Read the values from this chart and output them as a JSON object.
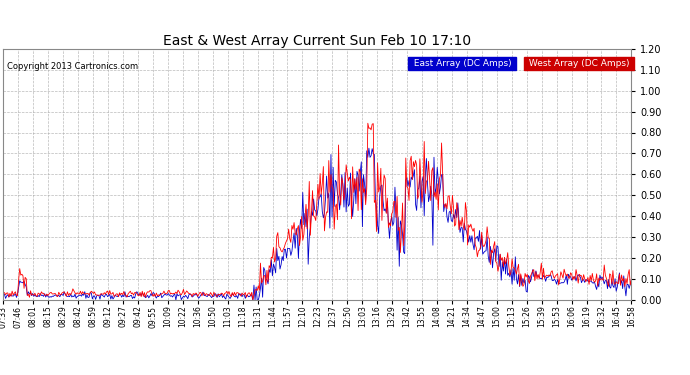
{
  "title": "East & West Array Current Sun Feb 10 17:10",
  "copyright": "Copyright 2013 Cartronics.com",
  "legend_east": "East Array (DC Amps)",
  "legend_west": "West Array (DC Amps)",
  "east_color": "#0000cc",
  "west_color": "#ff0000",
  "east_legend_bg": "#0000cc",
  "west_legend_bg": "#cc0000",
  "ylim": [
    0.0,
    1.2
  ],
  "yticks": [
    0.0,
    0.1,
    0.2,
    0.3,
    0.4,
    0.5,
    0.6,
    0.7,
    0.8,
    0.9,
    1.0,
    1.1,
    1.2
  ],
  "plot_bg": "#ffffff",
  "fig_bg": "#ffffff",
  "grid_color": "#aaaaaa",
  "xtick_labels": [
    "07:33",
    "07:46",
    "08:01",
    "08:15",
    "08:29",
    "08:42",
    "08:59",
    "09:12",
    "09:27",
    "09:42",
    "09:55",
    "10:09",
    "10:22",
    "10:36",
    "10:50",
    "11:03",
    "11:18",
    "11:31",
    "11:44",
    "11:57",
    "12:10",
    "12:23",
    "12:37",
    "12:50",
    "13:03",
    "13:16",
    "13:29",
    "13:42",
    "13:55",
    "14:08",
    "14:21",
    "14:34",
    "14:47",
    "15:00",
    "15:13",
    "15:26",
    "15:39",
    "15:53",
    "16:06",
    "16:19",
    "16:32",
    "16:45",
    "16:58"
  ],
  "n_points": 580
}
